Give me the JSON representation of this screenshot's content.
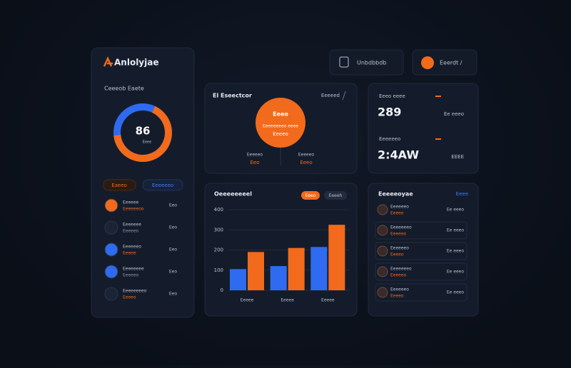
{
  "sidebar": {
    "logo": "Anlolyjae",
    "section_label": "Ceeeob Eaete",
    "donut_value": "86",
    "donut_sub": "Eeee",
    "tabs": [
      "Eaeeo",
      "Eeeeeeo"
    ],
    "items": [
      {
        "title": "Eeeeee",
        "sub": "Eeeeeeoo",
        "value": "Eeo"
      },
      {
        "title": "Eeeeeee",
        "sub": "Eeeeeo",
        "value": "Eeo"
      },
      {
        "title": "Eeeeeeo",
        "sub": "Eeeee",
        "value": "Eeo"
      },
      {
        "title": "Eeeeeeee",
        "sub": "Eeeeeo",
        "value": "Eeo"
      },
      {
        "title": "Eeeeeeeeo",
        "sub": "Eeeeo",
        "value": "Eeo"
      }
    ]
  },
  "top_bar": {
    "button1": "Unbdbbdb",
    "button2": "Eeerdt /"
  },
  "summary_card": {
    "title": "El Eseectcor",
    "action": "Eeeeed",
    "circle_title": "Eeeo",
    "circle_text": "Eeeeeeeeo eeee",
    "circle_value": "Eeeeo",
    "stats": [
      {
        "label": "Eeeeeo",
        "value": "Eeo"
      },
      {
        "label": "Eeeeeo",
        "value": "Eeeo"
      }
    ]
  },
  "metric_card": {
    "metrics": [
      {
        "label": "Eeeo eeee",
        "value": "289",
        "side": "Ee eeeo"
      },
      {
        "label": "Eeeeeeo",
        "value": "2:4AW",
        "side": "EEEE"
      }
    ]
  },
  "bar_chart": {
    "type": "bar",
    "title": "Oeeeeeeeel",
    "toggles": [
      "Eeeo",
      "Eeeeh"
    ],
    "categories": [
      "Eeeee",
      "Eeeee",
      "Eeeee"
    ],
    "series": [
      {
        "color": "#2f6bf0",
        "values": [
          105,
          120,
          215
        ]
      },
      {
        "color": "#f26a1b",
        "values": [
          190,
          210,
          325
        ]
      }
    ],
    "ylim": [
      0,
      400
    ],
    "yticks": [
      0,
      100,
      200,
      300,
      400
    ],
    "grid": true
  },
  "list_card": {
    "title": "Eeeeeoyae",
    "action": "Eeee",
    "rows": [
      {
        "name": "Eeeeeeo",
        "detail": "Eeeeo",
        "value": "Ee eeeo"
      },
      {
        "name": "Eeeeeeeo",
        "detail": "Eeeeeo",
        "value": "Ee eeeo"
      },
      {
        "name": "Eeeeeeo",
        "detail": "Eeeeo",
        "value": "Ee eeeo"
      },
      {
        "name": "Eeeeeeeo",
        "detail": "Eeeeeo",
        "value": "Ee eeeo"
      },
      {
        "name": "Eeeeeeo",
        "detail": "Eeeeo",
        "value": "Ee eeeo"
      }
    ]
  }
}
